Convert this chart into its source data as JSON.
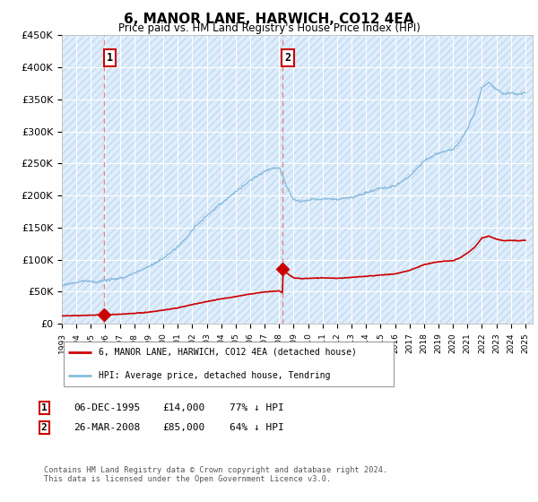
{
  "title": "6, MANOR LANE, HARWICH, CO12 4EA",
  "subtitle": "Price paid vs. HM Land Registry's House Price Index (HPI)",
  "ylim": [
    0,
    450000
  ],
  "xlim_start": 1993.0,
  "xlim_end": 2025.5,
  "sale1_date": 1995.93,
  "sale1_price": 14000,
  "sale1_label": "1",
  "sale2_date": 2008.23,
  "sale2_price": 85000,
  "sale2_label": "2",
  "legend_line1": "6, MANOR LANE, HARWICH, CO12 4EA (detached house)",
  "legend_line2": "HPI: Average price, detached house, Tendring",
  "table_row1": [
    "1",
    "06-DEC-1995",
    "£14,000",
    "77% ↓ HPI"
  ],
  "table_row2": [
    "2",
    "26-MAR-2008",
    "£85,000",
    "64% ↓ HPI"
  ],
  "footer": "Contains HM Land Registry data © Crown copyright and database right 2024.\nThis data is licensed under the Open Government Licence v3.0.",
  "hpi_color": "#88bbdd",
  "price_color": "#cc0000",
  "sale_marker_color": "#cc0000",
  "vline_color": "#dd8888",
  "bg_color": "#ddeeff",
  "hatch_color": "#c8d8e8"
}
